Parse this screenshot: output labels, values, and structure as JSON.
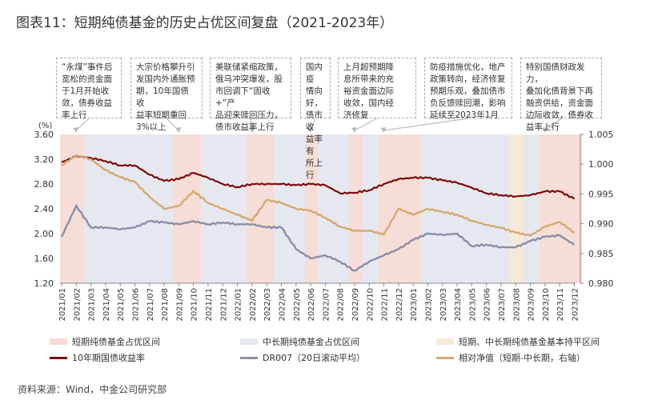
{
  "title": "图表11：短期纯债基金的历史占优区间复盘（2021-2023年）",
  "source": "资料来源：Wind，中金公司研究部",
  "annotations": [
    {
      "text": "“永煤”事件后\n宽松的资金面\n于1月开始收\n敛，债券收益\n率上行",
      "target": "2021/02"
    },
    {
      "text": "大宗价格攀升引\n发国内外通胀预\n期，10年国债收\n益率短期重回\n3%以上",
      "target": "2021/09"
    },
    {
      "text": "美联储紧缩政策，\n俄乌冲突爆发，股\n市回调下“固收+”产\n品迎来赎回压力，\n债市收益率上行",
      "target": "2022/02"
    },
    {
      "text": "国内疫\n情向好，\n债市收\n益率有\n所上行",
      "target": "2022/06"
    },
    {
      "text": "上月超预期降\n息所带来的充\n裕资金面边际\n收敛，国内经\n济修复",
      "target": "2022/09"
    },
    {
      "text": "防疫措施优化，地产\n政策转向，经济修复\n预期乐观，叠加债市\n负反馈赎回潮，影响\n延续至2023年1月",
      "target": "2022/11"
    },
    {
      "text": "特别国债财政发力，\n叠加化债背景下再\n融资供给，资金面\n边际收敛，债券收\n益率上行",
      "target": "2023/10"
    }
  ],
  "legend": {
    "short": "短期纯债基金占优区间",
    "mid": "中长期纯债基金占优区间",
    "flat": "短期、中长期纯债基金基本持平区间",
    "y10": "10年期国债收益率",
    "dr007": "DR007（20日滚动平均）",
    "nav": "相对净值（短期-中长期，右轴）"
  },
  "chart_data": {
    "type": "line",
    "title": "图表11：短期纯债基金的历史占优区间复盘（2021-2023年）",
    "ylabel": "(%)",
    "ylim": [
      1.2,
      3.6
    ],
    "yticks": [
      "1.20",
      "1.60",
      "2.00",
      "2.40",
      "2.80",
      "3.20",
      "3.60"
    ],
    "y2lim": [
      0.98,
      1.005
    ],
    "y2ticks": [
      "0.980",
      "0.985",
      "0.990",
      "0.995",
      "1.000",
      "1.005"
    ],
    "x": [
      "2021/01",
      "2021/02",
      "2021/03",
      "2021/04",
      "2021/05",
      "2021/06",
      "2021/07",
      "2021/08",
      "2021/09",
      "2021/10",
      "2021/11",
      "2021/12",
      "2022/01",
      "2022/02",
      "2022/03",
      "2022/04",
      "2022/05",
      "2022/06",
      "2022/07",
      "2022/08",
      "2022/09",
      "2022/10",
      "2022/11",
      "2022/12",
      "2023/01",
      "2023/02",
      "2023/03",
      "2023/04",
      "2023/05",
      "2023/06",
      "2023/07",
      "2023/08",
      "2023/09",
      "2023/10",
      "2023/11",
      "2023/12"
    ],
    "series": [
      {
        "name": "10年期国债收益率",
        "axis": "left",
        "color": "#7a0c0c",
        "values": [
          3.15,
          3.25,
          3.22,
          3.17,
          3.1,
          3.1,
          2.95,
          2.85,
          2.88,
          2.98,
          2.9,
          2.8,
          2.75,
          2.8,
          2.8,
          2.8,
          2.78,
          2.8,
          2.78,
          2.65,
          2.66,
          2.7,
          2.8,
          2.88,
          2.9,
          2.9,
          2.86,
          2.82,
          2.74,
          2.65,
          2.62,
          2.6,
          2.62,
          2.68,
          2.68,
          2.56
        ]
      },
      {
        "name": "DR007（20日滚动平均）",
        "axis": "left",
        "color": "#8a8ea8",
        "values": [
          1.95,
          2.45,
          2.1,
          2.1,
          2.07,
          2.1,
          2.2,
          2.18,
          2.15,
          2.2,
          2.15,
          2.18,
          2.15,
          2.15,
          2.1,
          2.1,
          1.75,
          1.6,
          1.65,
          1.55,
          1.4,
          1.55,
          1.65,
          1.75,
          1.9,
          2.0,
          1.98,
          2.0,
          1.8,
          1.82,
          1.78,
          1.78,
          1.88,
          1.95,
          1.97,
          1.82
        ]
      },
      {
        "name": "相对净值（短期-中长期，右轴）",
        "axis": "right",
        "color": "#d4aa72",
        "values": [
          0.9998,
          1.0015,
          1.0008,
          0.999,
          0.9978,
          0.997,
          0.9945,
          0.9925,
          0.993,
          0.9955,
          0.9935,
          0.9925,
          0.9915,
          0.9905,
          0.994,
          0.9935,
          0.9925,
          0.9922,
          0.991,
          0.9895,
          0.9888,
          0.9888,
          0.9882,
          0.9925,
          0.9915,
          0.9925,
          0.992,
          0.9915,
          0.9905,
          0.9898,
          0.9893,
          0.9885,
          0.988,
          0.9895,
          0.9903,
          0.9885
        ]
      }
    ],
    "regions": [
      {
        "type": "short",
        "from": "2021/01",
        "to": "2021/02"
      },
      {
        "type": "short",
        "from": "2021/09",
        "to": "2021/10"
      },
      {
        "type": "short",
        "from": "2022/02",
        "to": "2022/03"
      },
      {
        "type": "short",
        "from": "2022/06",
        "to": "2022/06"
      },
      {
        "type": "short",
        "from": "2022/09",
        "to": "2022/09"
      },
      {
        "type": "short",
        "from": "2022/11",
        "to": "2023/01"
      },
      {
        "type": "flat",
        "from": "2023/08",
        "to": "2023/08"
      },
      {
        "type": "short",
        "from": "2023/10",
        "to": "2023/12"
      }
    ],
    "colors": {
      "short": "#f7dcd4",
      "mid": "#e6e8ef",
      "flat": "#f7e9d6"
    },
    "grid": false,
    "legend": "bottom"
  }
}
